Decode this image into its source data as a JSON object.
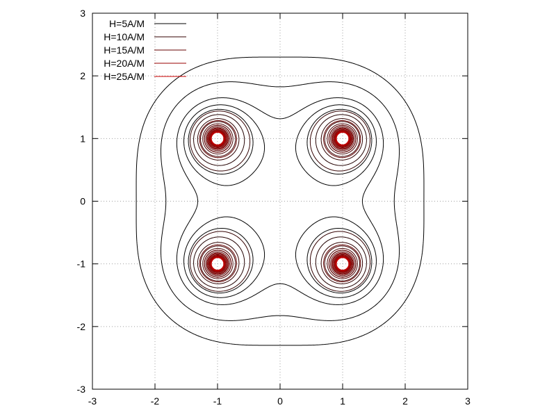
{
  "chart_data": {
    "type": "contour",
    "title": "",
    "xlabel": "",
    "ylabel": "",
    "xlim": [
      -3,
      3
    ],
    "ylim": [
      -3,
      3
    ],
    "x_ticks": [
      -3,
      -2,
      -1,
      0,
      1,
      2,
      3
    ],
    "y_ticks": [
      -3,
      -2,
      -1,
      0,
      1,
      2,
      3
    ],
    "x_tick_labels": [
      "-3",
      "-2",
      "-1",
      "0",
      "1",
      "2",
      "3"
    ],
    "y_tick_labels": [
      "-3",
      "-2",
      "-1",
      "0",
      "1",
      "2",
      "3"
    ],
    "grid": true,
    "legend_position": "top-left",
    "sources": [
      {
        "x": -1,
        "y": 1
      },
      {
        "x": 1,
        "y": 1
      },
      {
        "x": -1,
        "y": -1
      },
      {
        "x": 1,
        "y": -1
      }
    ],
    "series": [
      {
        "name": "H=5A/M",
        "level": 5,
        "color": "#000000"
      },
      {
        "name": "H=10A/M",
        "level": 10,
        "color": "#330000"
      },
      {
        "name": "H=15A/M",
        "level": 15,
        "color": "#660000"
      },
      {
        "name": "H=20A/M",
        "level": 20,
        "color": "#990000"
      },
      {
        "name": "H=25A/M",
        "level": 25,
        "color": "#cc0000"
      }
    ]
  }
}
